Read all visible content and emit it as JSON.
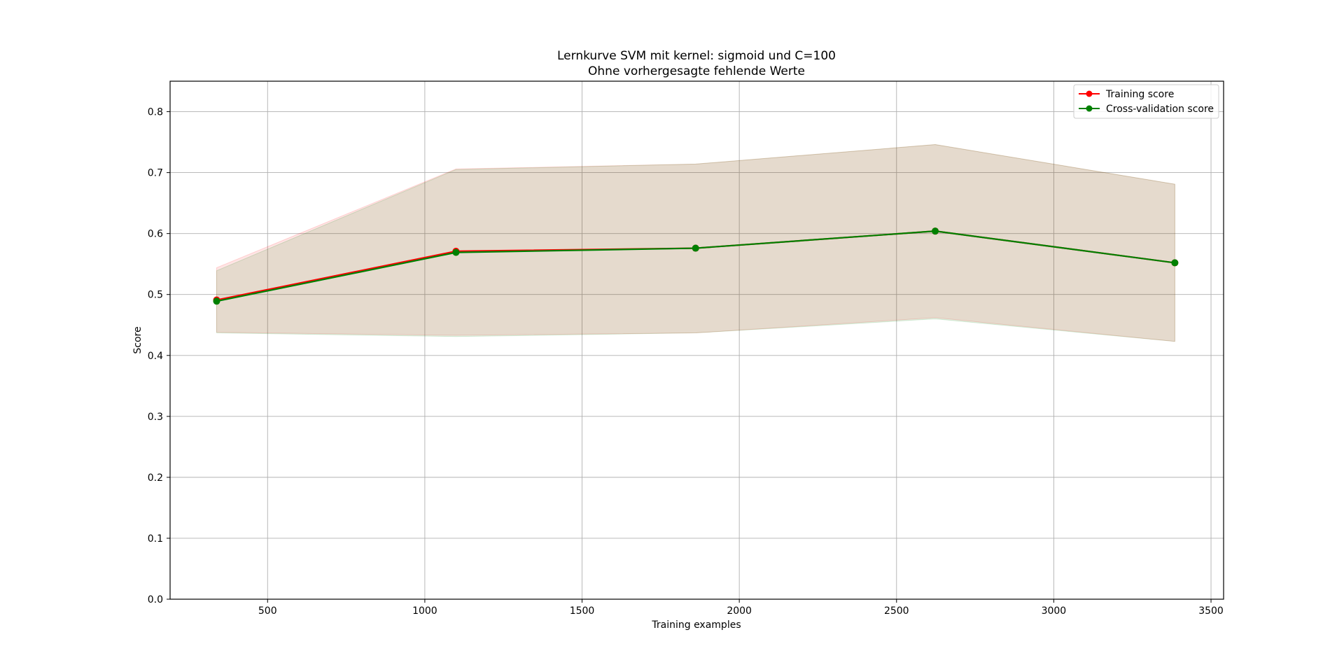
{
  "chart_data": {
    "type": "line",
    "title": "Lernkurve SVM mit kernel: sigmoid und C=100",
    "subtitle": "Ohne vorhergesagte fehlende Werte",
    "xlabel": "Training examples",
    "ylabel": "Score",
    "xlim": [
      190,
      3540
    ],
    "ylim": [
      0,
      0.85
    ],
    "xticks": [
      500,
      1000,
      1500,
      2000,
      2500,
      3000,
      3500
    ],
    "yticks": [
      0.0,
      0.1,
      0.2,
      0.3,
      0.4,
      0.5,
      0.6,
      0.7,
      0.8
    ],
    "grid": true,
    "legend_position": "top-right",
    "x": [
      338,
      1099,
      1861,
      2623,
      3385
    ],
    "series": [
      {
        "name": "Training score",
        "color": "#ff0000",
        "values": [
          0.491,
          0.571,
          0.576,
          0.604,
          0.552
        ],
        "band_lower": [
          0.438,
          0.433,
          0.437,
          0.462,
          0.423
        ],
        "band_upper": [
          0.544,
          0.706,
          0.714,
          0.746,
          0.681
        ]
      },
      {
        "name": "Cross-validation score",
        "color": "#008000",
        "values": [
          0.489,
          0.569,
          0.576,
          0.604,
          0.552
        ],
        "band_lower": [
          0.437,
          0.431,
          0.437,
          0.46,
          0.423
        ],
        "band_upper": [
          0.539,
          0.705,
          0.714,
          0.746,
          0.681
        ]
      }
    ]
  }
}
